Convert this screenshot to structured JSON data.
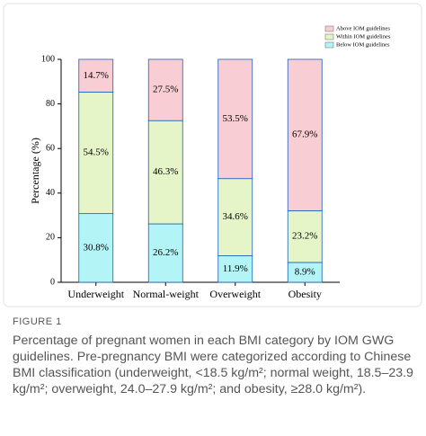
{
  "chart_data": {
    "type": "stacked-bar",
    "y_label": "Percentage (%)",
    "categories": [
      "Underweight",
      "Normal-weight",
      "Overweight",
      "Obesity"
    ],
    "series": [
      {
        "name": "Below IOM guidelines",
        "color": "#b3f4f7",
        "values": [
          30.8,
          26.2,
          11.9,
          8.9
        ],
        "value_labels": [
          "30.8%",
          "26.2%",
          "11.9%",
          "8.9%"
        ]
      },
      {
        "name": "Within IOM guidelines",
        "color": "#e6f5c8",
        "values": [
          54.5,
          46.3,
          34.6,
          23.2
        ],
        "value_labels": [
          "54.5%",
          "46.3%",
          "34.6%",
          "23.2%"
        ]
      },
      {
        "name": "Above IOM guidelines",
        "color": "#f8cdd3",
        "values": [
          14.7,
          27.5,
          53.5,
          67.9
        ],
        "value_labels": [
          "14.7%",
          "27.5%",
          "53.5%",
          "67.9%"
        ]
      }
    ],
    "ylim": [
      0,
      100
    ],
    "yticks": [
      0,
      20,
      40,
      60,
      80,
      100
    ],
    "legend": "top-right"
  },
  "caption": {
    "label": "FIGURE 1",
    "text": "Percentage of pregnant women in each BMI category by IOM GWG guidelines. Pre-pregnancy BMI were categorized according to Chinese BMI classification (underweight, <18.5 kg/m²; normal weight, 18.5–23.9 kg/m²; overweight, 24.0–27.9 kg/m²; and obesity, ≥28.0 kg/m²)."
  }
}
